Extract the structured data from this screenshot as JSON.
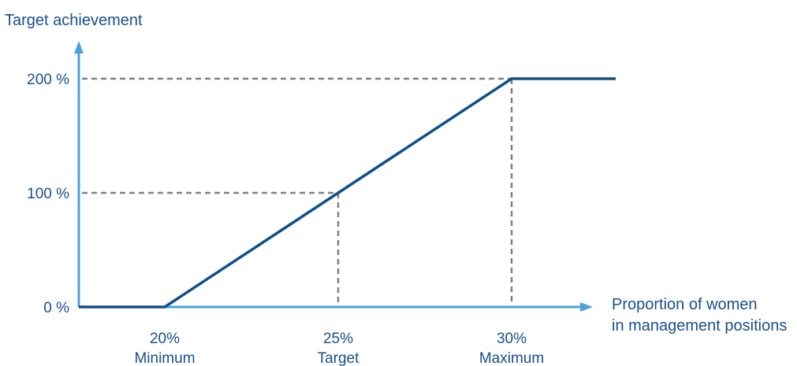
{
  "chart_data": {
    "type": "line",
    "ylabel": "Target achievement",
    "xlabel_lines": [
      "Proportion of women",
      "in management positions"
    ],
    "y_ticks": [
      {
        "value": 0,
        "label": "0 %"
      },
      {
        "value": 100,
        "label": "100 %"
      },
      {
        "value": 200,
        "label": "200 %"
      }
    ],
    "x_ticks": [
      {
        "value": 20,
        "label": "20%",
        "sublabel": "Minimum"
      },
      {
        "value": 25,
        "label": "25%",
        "sublabel": "Target"
      },
      {
        "value": 30,
        "label": "30%",
        "sublabel": "Maximum"
      }
    ],
    "series": [
      {
        "points": [
          {
            "x": 0,
            "y": 0
          },
          {
            "x": 20,
            "y": 0
          },
          {
            "x": 25,
            "y": 100
          },
          {
            "x": 30,
            "y": 200
          },
          {
            "x": 33,
            "y": 200
          }
        ]
      }
    ],
    "reference_points": [
      {
        "x": 25,
        "y": 100
      },
      {
        "x": 30,
        "y": 200
      }
    ],
    "colors": {
      "axis": "#4aa3df",
      "line": "#0f4f8c",
      "guide": "#808080",
      "text": "#1a4f8b"
    }
  }
}
